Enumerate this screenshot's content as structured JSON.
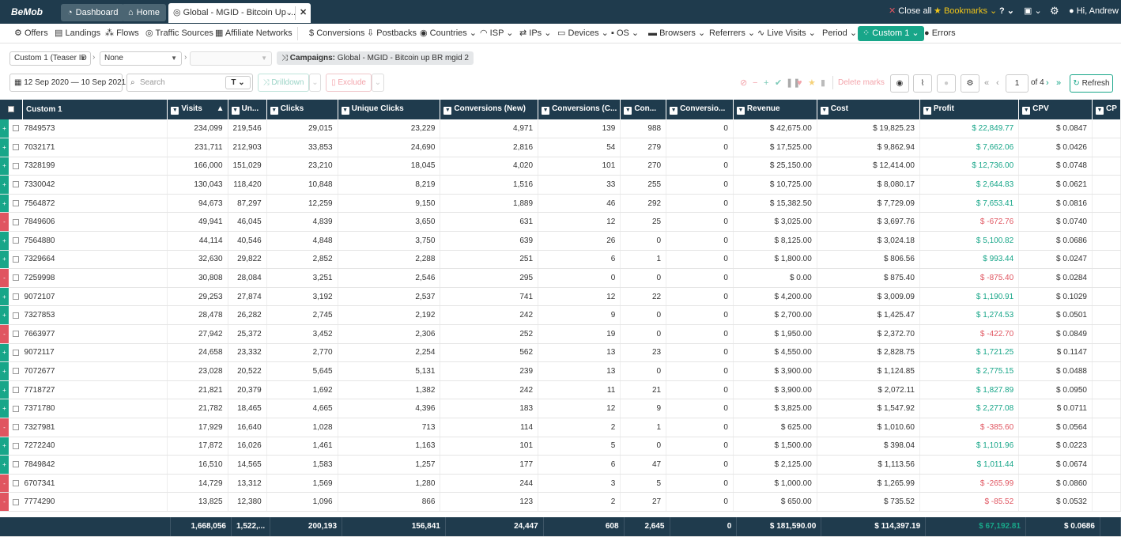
{
  "topbar": {
    "logo": "BeMob",
    "dashboard": "Dashboard",
    "home": "Home",
    "tab_title": "Global - MGID - Bitcoin Up ...",
    "close_all": "Close all",
    "bookmarks": "Bookmarks",
    "user": "Hi, Andrew"
  },
  "nav": {
    "offers": "Offers",
    "landings": "Landings",
    "flows": "Flows",
    "traffic_sources": "Traffic Sources",
    "affiliate_networks": "Affiliate Networks",
    "conversions": "Conversions",
    "postbacks": "Postbacks",
    "countries": "Countries",
    "isp": "ISP",
    "ips": "IPs",
    "devices": "Devices",
    "os": "OS",
    "browsers": "Browsers",
    "referrers": "Referrers",
    "live_visits": "Live Visits",
    "period": "Period",
    "custom1": "Custom 1",
    "errors": "Errors"
  },
  "filters": {
    "group1": "Custom 1 (Teaser ID",
    "group2": "None",
    "group3": "",
    "campaigns_label": "Campaigns:",
    "campaigns_value": "Global - MGID - Bitcoin up BR mgid 2"
  },
  "toolbar": {
    "daterange": "12 Sep 2020 — 10 Sep 2021",
    "search_placeholder": "Search",
    "drilldown": "Drilldown",
    "exclude": "Exclude",
    "delete_marks": "Delete marks",
    "page": "1",
    "of": "of 4",
    "refresh": "Refresh"
  },
  "columns": [
    "Custom 1",
    "Visits",
    "Un...",
    "Clicks",
    "Unique Clicks",
    "Conversions (New)",
    "Conversions (C...",
    "Con...",
    "Conversio...",
    "Revenue",
    "Cost",
    "Profit",
    "CPV",
    "CP"
  ],
  "rows": [
    {
      "mark": "+",
      "id": "7849573",
      "visits": "234,099",
      "uniq": "219,546",
      "clicks": "29,015",
      "uclicks": "23,229",
      "conv_new": "4,971",
      "conv_c": "139",
      "con": "988",
      "conv2": "0",
      "revenue": "$ 42,675.00",
      "cost": "$ 19,825.23",
      "profit": "$ 22,849.77",
      "cpv": "$ 0.0847"
    },
    {
      "mark": "+",
      "id": "7032171",
      "visits": "231,711",
      "uniq": "212,903",
      "clicks": "33,853",
      "uclicks": "24,690",
      "conv_new": "2,816",
      "conv_c": "54",
      "con": "279",
      "conv2": "0",
      "revenue": "$ 17,525.00",
      "cost": "$ 9,862.94",
      "profit": "$ 7,662.06",
      "cpv": "$ 0.0426"
    },
    {
      "mark": "+",
      "id": "7328199",
      "visits": "166,000",
      "uniq": "151,029",
      "clicks": "23,210",
      "uclicks": "18,045",
      "conv_new": "4,020",
      "conv_c": "101",
      "con": "270",
      "conv2": "0",
      "revenue": "$ 25,150.00",
      "cost": "$ 12,414.00",
      "profit": "$ 12,736.00",
      "cpv": "$ 0.0748"
    },
    {
      "mark": "+",
      "id": "7330042",
      "visits": "130,043",
      "uniq": "118,420",
      "clicks": "10,848",
      "uclicks": "8,219",
      "conv_new": "1,516",
      "conv_c": "33",
      "con": "255",
      "conv2": "0",
      "revenue": "$ 10,725.00",
      "cost": "$ 8,080.17",
      "profit": "$ 2,644.83",
      "cpv": "$ 0.0621"
    },
    {
      "mark": "+",
      "id": "7564872",
      "visits": "94,673",
      "uniq": "87,297",
      "clicks": "12,259",
      "uclicks": "9,150",
      "conv_new": "1,889",
      "conv_c": "46",
      "con": "292",
      "conv2": "0",
      "revenue": "$ 15,382.50",
      "cost": "$ 7,729.09",
      "profit": "$ 7,653.41",
      "cpv": "$ 0.0816"
    },
    {
      "mark": "-",
      "id": "7849606",
      "visits": "49,941",
      "uniq": "46,045",
      "clicks": "4,839",
      "uclicks": "3,650",
      "conv_new": "631",
      "conv_c": "12",
      "con": "25",
      "conv2": "0",
      "revenue": "$ 3,025.00",
      "cost": "$ 3,697.76",
      "profit": "$ -672.76",
      "cpv": "$ 0.0740"
    },
    {
      "mark": "+",
      "id": "7564880",
      "visits": "44,114",
      "uniq": "40,546",
      "clicks": "4,848",
      "uclicks": "3,750",
      "conv_new": "639",
      "conv_c": "26",
      "con": "0",
      "conv2": "0",
      "revenue": "$ 8,125.00",
      "cost": "$ 3,024.18",
      "profit": "$ 5,100.82",
      "cpv": "$ 0.0686"
    },
    {
      "mark": "+",
      "id": "7329664",
      "visits": "32,630",
      "uniq": "29,822",
      "clicks": "2,852",
      "uclicks": "2,288",
      "conv_new": "251",
      "conv_c": "6",
      "con": "1",
      "conv2": "0",
      "revenue": "$ 1,800.00",
      "cost": "$ 806.56",
      "profit": "$ 993.44",
      "cpv": "$ 0.0247"
    },
    {
      "mark": "-",
      "id": "7259998",
      "visits": "30,808",
      "uniq": "28,084",
      "clicks": "3,251",
      "uclicks": "2,546",
      "conv_new": "295",
      "conv_c": "0",
      "con": "0",
      "conv2": "0",
      "revenue": "$ 0.00",
      "cost": "$ 875.40",
      "profit": "$ -875.40",
      "cpv": "$ 0.0284"
    },
    {
      "mark": "+",
      "id": "9072107",
      "visits": "29,253",
      "uniq": "27,874",
      "clicks": "3,192",
      "uclicks": "2,537",
      "conv_new": "741",
      "conv_c": "12",
      "con": "22",
      "conv2": "0",
      "revenue": "$ 4,200.00",
      "cost": "$ 3,009.09",
      "profit": "$ 1,190.91",
      "cpv": "$ 0.1029"
    },
    {
      "mark": "+",
      "id": "7327853",
      "visits": "28,478",
      "uniq": "26,282",
      "clicks": "2,745",
      "uclicks": "2,192",
      "conv_new": "242",
      "conv_c": "9",
      "con": "0",
      "conv2": "0",
      "revenue": "$ 2,700.00",
      "cost": "$ 1,425.47",
      "profit": "$ 1,274.53",
      "cpv": "$ 0.0501"
    },
    {
      "mark": "-",
      "id": "7663977",
      "visits": "27,942",
      "uniq": "25,372",
      "clicks": "3,452",
      "uclicks": "2,306",
      "conv_new": "252",
      "conv_c": "19",
      "con": "0",
      "conv2": "0",
      "revenue": "$ 1,950.00",
      "cost": "$ 2,372.70",
      "profit": "$ -422.70",
      "cpv": "$ 0.0849"
    },
    {
      "mark": "+",
      "id": "9072117",
      "visits": "24,658",
      "uniq": "23,332",
      "clicks": "2,770",
      "uclicks": "2,254",
      "conv_new": "562",
      "conv_c": "13",
      "con": "23",
      "conv2": "0",
      "revenue": "$ 4,550.00",
      "cost": "$ 2,828.75",
      "profit": "$ 1,721.25",
      "cpv": "$ 0.1147"
    },
    {
      "mark": "+",
      "id": "7072677",
      "visits": "23,028",
      "uniq": "20,522",
      "clicks": "5,645",
      "uclicks": "5,131",
      "conv_new": "239",
      "conv_c": "13",
      "con": "0",
      "conv2": "0",
      "revenue": "$ 3,900.00",
      "cost": "$ 1,124.85",
      "profit": "$ 2,775.15",
      "cpv": "$ 0.0488"
    },
    {
      "mark": "+",
      "id": "7718727",
      "visits": "21,821",
      "uniq": "20,379",
      "clicks": "1,692",
      "uclicks": "1,382",
      "conv_new": "242",
      "conv_c": "11",
      "con": "21",
      "conv2": "0",
      "revenue": "$ 3,900.00",
      "cost": "$ 2,072.11",
      "profit": "$ 1,827.89",
      "cpv": "$ 0.0950"
    },
    {
      "mark": "+",
      "id": "7371780",
      "visits": "21,782",
      "uniq": "18,465",
      "clicks": "4,665",
      "uclicks": "4,396",
      "conv_new": "183",
      "conv_c": "12",
      "con": "9",
      "conv2": "0",
      "revenue": "$ 3,825.00",
      "cost": "$ 1,547.92",
      "profit": "$ 2,277.08",
      "cpv": "$ 0.0711"
    },
    {
      "mark": "-",
      "id": "7327981",
      "visits": "17,929",
      "uniq": "16,640",
      "clicks": "1,028",
      "uclicks": "713",
      "conv_new": "114",
      "conv_c": "2",
      "con": "1",
      "conv2": "0",
      "revenue": "$ 625.00",
      "cost": "$ 1,010.60",
      "profit": "$ -385.60",
      "cpv": "$ 0.0564"
    },
    {
      "mark": "+",
      "id": "7272240",
      "visits": "17,872",
      "uniq": "16,026",
      "clicks": "1,461",
      "uclicks": "1,163",
      "conv_new": "101",
      "conv_c": "5",
      "con": "0",
      "conv2": "0",
      "revenue": "$ 1,500.00",
      "cost": "$ 398.04",
      "profit": "$ 1,101.96",
      "cpv": "$ 0.0223"
    },
    {
      "mark": "+",
      "id": "7849842",
      "visits": "16,510",
      "uniq": "14,565",
      "clicks": "1,583",
      "uclicks": "1,257",
      "conv_new": "177",
      "conv_c": "6",
      "con": "47",
      "conv2": "0",
      "revenue": "$ 2,125.00",
      "cost": "$ 1,113.56",
      "profit": "$ 1,011.44",
      "cpv": "$ 0.0674"
    },
    {
      "mark": "-",
      "id": "6707341",
      "visits": "14,729",
      "uniq": "13,312",
      "clicks": "1,569",
      "uclicks": "1,280",
      "conv_new": "244",
      "conv_c": "3",
      "con": "5",
      "conv2": "0",
      "revenue": "$ 1,000.00",
      "cost": "$ 1,265.99",
      "profit": "$ -265.99",
      "cpv": "$ 0.0860"
    },
    {
      "mark": "-",
      "id": "7774290",
      "visits": "13,825",
      "uniq": "12,380",
      "clicks": "1,096",
      "uclicks": "866",
      "conv_new": "123",
      "conv_c": "2",
      "con": "27",
      "conv2": "0",
      "revenue": "$ 650.00",
      "cost": "$ 735.52",
      "profit": "$ -85.52",
      "cpv": "$ 0.0532"
    }
  ],
  "totals": {
    "visits": "1,668,056",
    "uniq": "1,522,...",
    "clicks": "200,193",
    "uclicks": "156,841",
    "conv_new": "24,447",
    "conv_c": "608",
    "con": "2,645",
    "conv2": "0",
    "revenue": "$ 181,590.00",
    "cost": "$ 114,397.19",
    "profit": "$ 67,192.81",
    "cpv": "$ 0.0686"
  },
  "colors": {
    "header": "#1f3b4d",
    "positive": "#18a689",
    "negative": "#e05560",
    "bookmark": "#f0c419"
  }
}
